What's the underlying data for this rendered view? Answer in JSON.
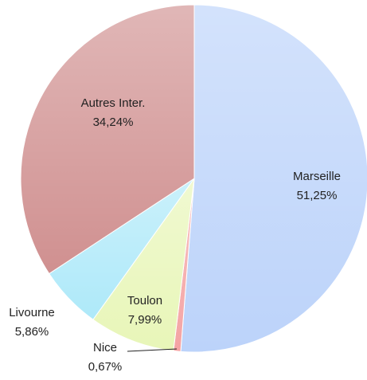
{
  "chart_data": {
    "type": "pie",
    "categories": [
      "Marseille",
      "Nice",
      "Toulon",
      "Livourne",
      "Autres Inter."
    ],
    "values": [
      51.25,
      0.67,
      7.99,
      5.86,
      34.24
    ],
    "value_labels": [
      "51,25%",
      "0,67%",
      "7,99%",
      "5,86%",
      "34,24%"
    ],
    "colors": [
      "#bcd3fa",
      "#f4a3a3",
      "#e8f6b8",
      "#aee9f9",
      "#d09090"
    ]
  }
}
